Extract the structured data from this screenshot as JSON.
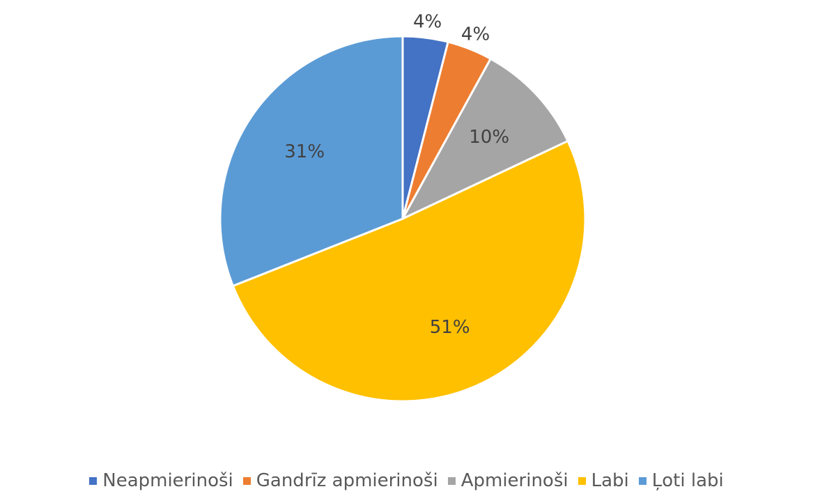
{
  "chart_data": {
    "type": "pie",
    "categories": [
      "Neapmierinoši",
      "Gandrīz apmierinoši",
      "Apmierinoši",
      "Labi",
      "Ļoti labi"
    ],
    "values": [
      4,
      4,
      10,
      51,
      31
    ],
    "value_labels": [
      "4%",
      "4%",
      "10%",
      "51%",
      "31%"
    ],
    "colors": [
      "#4472c4",
      "#ed7d31",
      "#a5a5a5",
      "#ffc000",
      "#5b9bd5"
    ],
    "legend": "bottom"
  }
}
